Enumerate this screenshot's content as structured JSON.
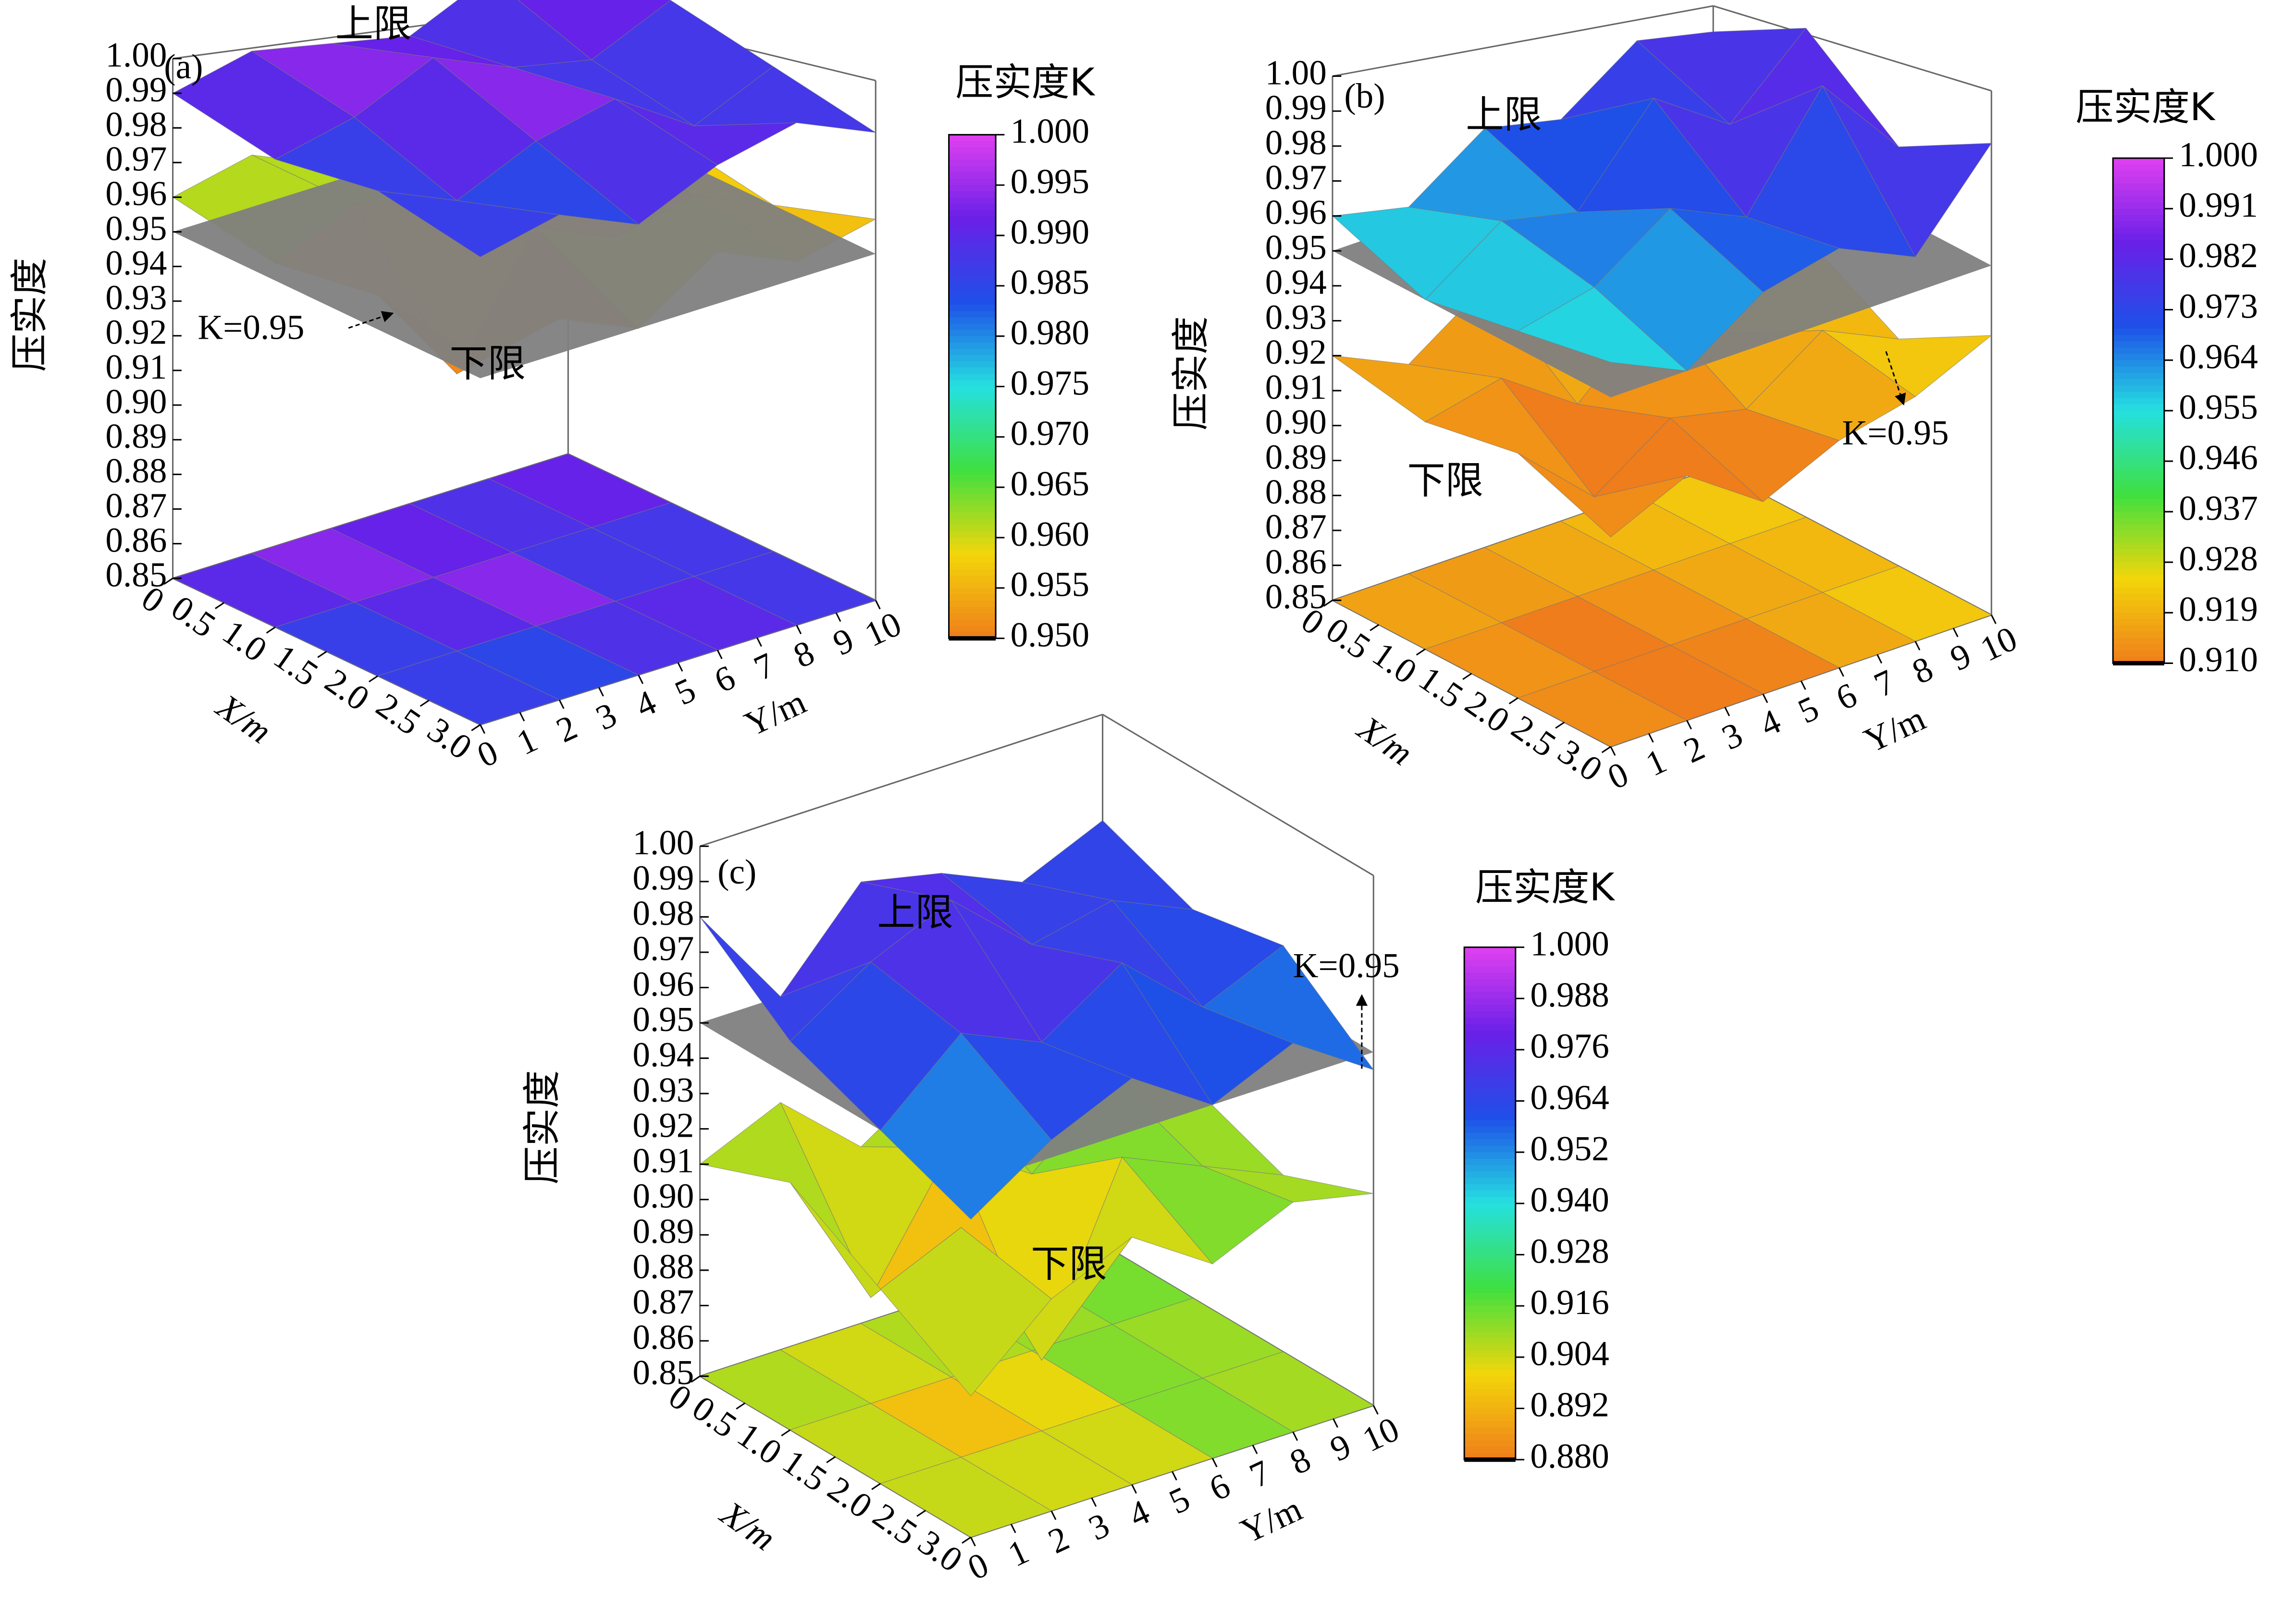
{
  "chart_data": [
    {
      "type": "surface3d",
      "panel": "(a)",
      "zlabel": "压实度",
      "xlabel": "X/m",
      "ylabel": "Y/m",
      "xlim": [
        0,
        3
      ],
      "xticks": [
        0,
        0.5,
        {
          "value": 1,
          "label": "1.0"
        },
        1.5,
        {
          "value": 2,
          "label": "2.0"
        },
        2.5,
        {
          "value": 3,
          "label": "3.0"
        }
      ],
      "ylim": [
        0,
        10
      ],
      "yticks": [
        0,
        1,
        2,
        3,
        4,
        5,
        6,
        7,
        8,
        9,
        10
      ],
      "zlim": [
        0.85,
        1.0
      ],
      "zticks": [
        {
          "value": 0.85,
          "label": "0.85"
        },
        0.86,
        0.87,
        0.88,
        0.89,
        {
          "value": 0.9,
          "label": "0.90"
        },
        0.91,
        0.92,
        0.93,
        0.94,
        0.95,
        0.96,
        0.97,
        0.98,
        0.99,
        {
          "value": 1,
          "label": "1.00"
        }
      ],
      "plane": {
        "value": 0.95,
        "label": "K=0.95",
        "color": "#808080"
      },
      "series": [
        {
          "name": "上限",
          "values": [
            [
              0.99,
              0.995,
              0.99,
              0.985,
              0.995,
              0.99
            ],
            [
              0.985,
              0.99,
              1.0,
              0.99,
              0.985,
              0.995
            ],
            [
              0.99,
              0.98,
              0.99,
              0.995,
              0.98,
              0.99
            ],
            [
              0.985,
              0.99,
              0.98,
              0.99,
              0.995,
              0.985
            ]
          ]
        },
        {
          "name": "下限",
          "values": [
            [
              0.96,
              0.965,
              0.955,
              0.96,
              0.97,
              0.96
            ],
            [
              0.955,
              0.965,
              0.96,
              0.93,
              0.965,
              0.955
            ],
            [
              0.96,
              0.93,
              0.965,
              0.955,
              0.96,
              0.95
            ],
            [
              0.955,
              0.96,
              0.95,
              0.965,
              0.955,
              0.96
            ]
          ]
        }
      ],
      "floor_series": 0,
      "colormap": [
        "#ef7d1b",
        "#f3d60a",
        "#3fe040",
        "#25e0e0",
        "#1e50e8",
        "#6a20e8",
        "#e040f0"
      ],
      "colorbar": {
        "title": "压实度K",
        "lim": [
          0.95,
          1.0
        ],
        "ticks": [
          {
            "value": 0.95,
            "label": "0.950"
          },
          0.955,
          {
            "value": 0.96,
            "label": "0.960"
          },
          0.965,
          {
            "value": 0.97,
            "label": "0.970"
          },
          0.975,
          {
            "value": 0.98,
            "label": "0.980"
          },
          0.985,
          {
            "value": 0.99,
            "label": "0.990"
          },
          0.995,
          {
            "value": 1,
            "label": "1.000"
          }
        ]
      }
    },
    {
      "type": "surface3d",
      "panel": "(b)",
      "zlabel": "压实度",
      "xlabel": "X/m",
      "ylabel": "Y/m",
      "xlim": [
        0,
        3
      ],
      "xticks": [
        0,
        0.5,
        {
          "value": 1,
          "label": "1.0"
        },
        1.5,
        {
          "value": 2,
          "label": "2.0"
        },
        2.5,
        {
          "value": 3,
          "label": "3.0"
        }
      ],
      "ylim": [
        0,
        10
      ],
      "yticks": [
        0,
        1,
        2,
        3,
        4,
        5,
        6,
        7,
        8,
        9,
        10
      ],
      "zlim": [
        0.85,
        1.0
      ],
      "zticks": [
        {
          "value": 0.85,
          "label": "0.85"
        },
        0.86,
        0.87,
        0.88,
        0.89,
        {
          "value": 0.9,
          "label": "0.90"
        },
        0.91,
        0.92,
        0.93,
        0.94,
        0.95,
        0.96,
        0.97,
        0.98,
        0.99,
        {
          "value": 1,
          "label": "1.00"
        }
      ],
      "plane": {
        "value": 0.95,
        "label": "K=0.95",
        "color": "#808080"
      },
      "series": [
        {
          "name": "上限",
          "values": [
            [
              0.96,
              0.955,
              0.97,
              0.965,
              0.98,
              0.975
            ],
            [
              0.95,
              0.965,
              0.96,
              0.985,
              0.97,
              0.99
            ],
            [
              0.955,
              0.96,
              0.975,
              0.965,
              0.995,
              0.97
            ],
            [
              0.96,
              0.95,
              0.965,
              0.97,
              0.96,
              0.985
            ]
          ]
        },
        {
          "name": "下限",
          "values": [
            [
              0.92,
              0.91,
              0.925,
              0.915,
              0.93,
              0.92
            ],
            [
              0.915,
              0.92,
              0.905,
              0.925,
              0.91,
              0.93
            ],
            [
              0.92,
              0.9,
              0.915,
              0.91,
              0.925,
              0.915
            ],
            [
              0.91,
              0.92,
              0.905,
              0.915,
              0.92,
              0.93
            ]
          ]
        }
      ],
      "floor_series": 1,
      "colormap": [
        "#ef7d1b",
        "#f3d60a",
        "#3fe040",
        "#25e0e0",
        "#1e50e8",
        "#6a20e8",
        "#e040f0"
      ],
      "colorbar": {
        "title": "压实度K",
        "lim": [
          0.91,
          1.0
        ],
        "ticks": [
          {
            "value": 0.91,
            "label": "0.910"
          },
          0.919,
          0.928,
          0.937,
          0.946,
          0.955,
          0.964,
          0.973,
          0.982,
          0.991,
          {
            "value": 1,
            "label": "1.000"
          }
        ]
      }
    },
    {
      "type": "surface3d",
      "panel": "(c)",
      "zlabel": "压实度",
      "xlabel": "X/m",
      "ylabel": "Y/m",
      "xlim": [
        0,
        3
      ],
      "xticks": [
        0,
        0.5,
        {
          "value": 1,
          "label": "1.0"
        },
        1.5,
        {
          "value": 2,
          "label": "2.0"
        },
        2.5,
        {
          "value": 3,
          "label": "3.0"
        }
      ],
      "ylim": [
        0,
        10
      ],
      "yticks": [
        0,
        1,
        2,
        3,
        4,
        5,
        6,
        7,
        8,
        9,
        10
      ],
      "zlim": [
        0.85,
        1.0
      ],
      "zticks": [
        {
          "value": 0.85,
          "label": "0.85"
        },
        0.86,
        0.87,
        0.88,
        0.89,
        {
          "value": 0.9,
          "label": "0.90"
        },
        0.91,
        0.92,
        0.93,
        0.94,
        0.95,
        0.96,
        0.97,
        0.98,
        0.99,
        {
          "value": 1,
          "label": "1.00"
        }
      ],
      "plane": {
        "value": 0.95,
        "label": "K=0.95",
        "color": "#808080"
      },
      "series": [
        {
          "name": "上限",
          "values": [
            [
              0.98,
              0.95,
              0.975,
              0.97,
              0.96,
              0.97
            ],
            [
              0.96,
              0.975,
              0.985,
              0.965,
              0.97,
              0.96
            ],
            [
              0.95,
              0.97,
              0.96,
              0.975,
              0.955,
              0.965
            ],
            [
              0.94,
              0.955,
              0.965,
              0.95,
              0.96,
              0.945
            ]
          ]
        },
        {
          "name": "下限",
          "values": [
            [
              0.91,
              0.92,
              0.9,
              0.915,
              0.905,
              0.92
            ],
            [
              0.92,
              0.88,
              0.915,
              0.9,
              0.92,
              0.91
            ],
            [
              0.905,
              0.915,
              0.87,
              0.92,
              0.91,
              0.9
            ],
            [
              0.89,
              0.91,
              0.92,
              0.905,
              0.915,
              0.91
            ]
          ]
        }
      ],
      "floor_series": 1,
      "colormap": [
        "#ef7d1b",
        "#f3d60a",
        "#3fe040",
        "#25e0e0",
        "#1e50e8",
        "#6a20e8",
        "#e040f0"
      ],
      "colorbar": {
        "title": "压实度K",
        "lim": [
          0.88,
          1.0
        ],
        "ticks": [
          {
            "value": 0.88,
            "label": "0.880"
          },
          0.892,
          0.904,
          0.916,
          0.928,
          {
            "value": 0.94,
            "label": "0.940"
          },
          0.952,
          0.964,
          0.976,
          0.988,
          {
            "value": 1,
            "label": "1.000"
          }
        ]
      }
    }
  ]
}
